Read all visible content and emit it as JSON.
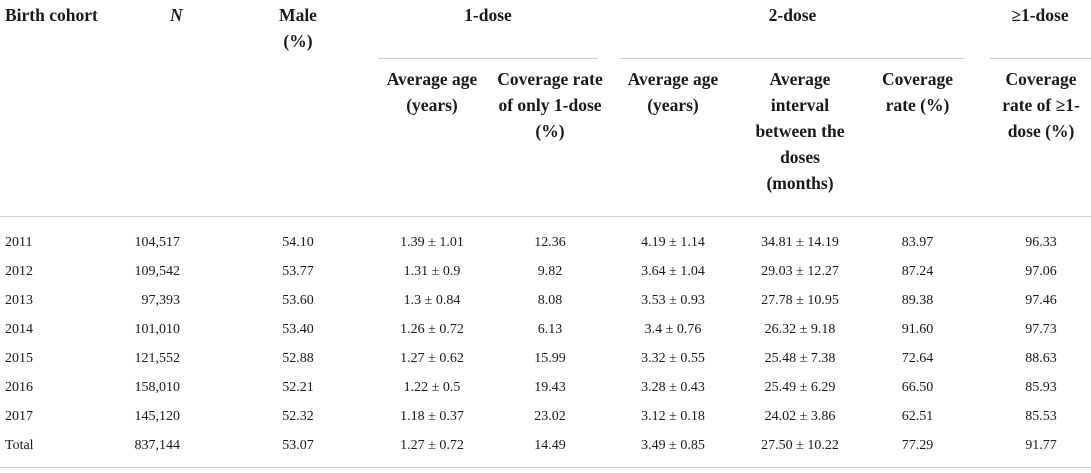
{
  "headers": {
    "birth_cohort": "Birth cohort",
    "n": "N",
    "male": "Male (%)",
    "one_dose": "1-dose",
    "two_dose": "2-dose",
    "ge_one_dose": "≥1-dose",
    "one_dose_avg_age": "Average age (years)",
    "one_dose_coverage": "Coverage rate of only 1-dose (%)",
    "two_dose_avg_age": "Average age (years)",
    "two_dose_interval": "Average interval between the doses (months)",
    "two_dose_coverage": "Coverage rate (%)",
    "ge_one_dose_coverage": "Coverage rate of ≥1-dose (%)"
  },
  "rows": [
    {
      "cohort": "2011",
      "n": "104,517",
      "male": "54.10",
      "age1": "1.39 ± 1.01",
      "cov1": "12.36",
      "age2": "4.19 ± 1.14",
      "interval": "34.81 ± 14.19",
      "cov2": "83.97",
      "cov_ge1": "96.33"
    },
    {
      "cohort": "2012",
      "n": "109,542",
      "male": "53.77",
      "age1": "1.31 ± 0.9",
      "cov1": "9.82",
      "age2": "3.64 ± 1.04",
      "interval": "29.03 ± 12.27",
      "cov2": "87.24",
      "cov_ge1": "97.06"
    },
    {
      "cohort": "2013",
      "n": "97,393",
      "male": "53.60",
      "age1": "1.3 ± 0.84",
      "cov1": "8.08",
      "age2": "3.53 ± 0.93",
      "interval": "27.78 ± 10.95",
      "cov2": "89.38",
      "cov_ge1": "97.46"
    },
    {
      "cohort": "2014",
      "n": "101,010",
      "male": "53.40",
      "age1": "1.26 ± 0.72",
      "cov1": "6.13",
      "age2": "3.4 ± 0.76",
      "interval": "26.32 ± 9.18",
      "cov2": "91.60",
      "cov_ge1": "97.73"
    },
    {
      "cohort": "2015",
      "n": "121,552",
      "male": "52.88",
      "age1": "1.27 ± 0.62",
      "cov1": "15.99",
      "age2": "3.32 ± 0.55",
      "interval": "25.48 ± 7.38",
      "cov2": "72.64",
      "cov_ge1": "88.63"
    },
    {
      "cohort": "2016",
      "n": "158,010",
      "male": "52.21",
      "age1": "1.22 ± 0.5",
      "cov1": "19.43",
      "age2": "3.28 ± 0.43",
      "interval": "25.49 ± 6.29",
      "cov2": "66.50",
      "cov_ge1": "85.93"
    },
    {
      "cohort": "2017",
      "n": "145,120",
      "male": "52.32",
      "age1": "1.18 ± 0.37",
      "cov1": "23.02",
      "age2": "3.12 ± 0.18",
      "interval": "24.02 ± 3.86",
      "cov2": "62.51",
      "cov_ge1": "85.53"
    },
    {
      "cohort": "Total",
      "n": "837,144",
      "male": "53.07",
      "age1": "1.27 ± 0.72",
      "cov1": "14.49",
      "age2": "3.49 ± 0.85",
      "interval": "27.50 ± 10.22",
      "cov2": "77.29",
      "cov_ge1": "91.77"
    }
  ]
}
